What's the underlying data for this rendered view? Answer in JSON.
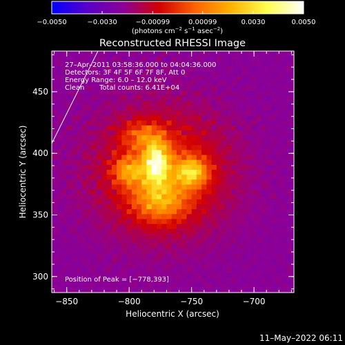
{
  "chart_data": {
    "type": "heatmap",
    "title": "Reconstructed RHESSI Image",
    "xlabel": "Heliocentric X (arcsec)",
    "ylabel": "Heliocentric Y (arcsec)",
    "xlim": [
      -862,
      -668
    ],
    "ylim": [
      287,
      483
    ],
    "x_ticks": [
      -850,
      -800,
      -750,
      -700
    ],
    "y_ticks": [
      300,
      350,
      400,
      450
    ],
    "x_tick_labels": [
      "−850",
      "−800",
      "−750",
      "−700"
    ],
    "y_tick_labels": [
      "300",
      "350",
      "400",
      "450"
    ],
    "colorbar": {
      "range": [
        -0.005,
        0.005
      ],
      "ticks": [
        -0.005,
        -0.003,
        -0.00099,
        0.00099,
        0.003,
        0.005
      ],
      "tick_labels": [
        "−0.0050",
        "−0.0030",
        "−0.00099",
        "0.00099",
        "0.0030",
        "0.0050"
      ],
      "colors": [
        "#0000ff",
        "#5a00c8",
        "#8c0096",
        "#d20000",
        "#ff6400",
        "#ffb400",
        "#ffff50",
        "#ffffff"
      ],
      "unit_label_parts": {
        "prefix": "(photons cm",
        "exp1": "−2",
        "mid1": " s",
        "exp2": "−1",
        "mid2": " asec",
        "exp3": "−2",
        "suffix": ")"
      }
    },
    "annotations": [
      "27–Apr–2011 03:58:36.000 to 04:04:36.000",
      "Detectors: 3F 4F 5F 6F 7F 8F, Att 0",
      "Energy Range: 6.0 – 12.0 keV",
      "Clean",
      "Total counts: 6.41E+04"
    ],
    "peak_label": "Position of Peak = [−778,393]",
    "peak": [
      -778,
      393
    ],
    "sources": [
      {
        "x": -778,
        "y": 393,
        "amp": 0.0048,
        "sx": 7,
        "sy": 12
      },
      {
        "x": -750,
        "y": 385,
        "amp": 0.0036,
        "sx": 9,
        "sy": 8
      },
      {
        "x": -800,
        "y": 386,
        "amp": 0.0026,
        "sx": 9,
        "sy": 8
      },
      {
        "x": -775,
        "y": 362,
        "amp": 0.0026,
        "sx": 15,
        "sy": 12
      },
      {
        "x": -790,
        "y": 415,
        "amp": 0.0018,
        "sx": 11,
        "sy": 8
      },
      {
        "x": -773,
        "y": 385,
        "amp": 0.0024,
        "sx": 35,
        "sy": 33
      }
    ],
    "background": -0.0022,
    "limb_line": [
      [
        -862,
        408
      ],
      [
        -825,
        483
      ]
    ]
  },
  "timestamp": "11–May–2022 06:11"
}
